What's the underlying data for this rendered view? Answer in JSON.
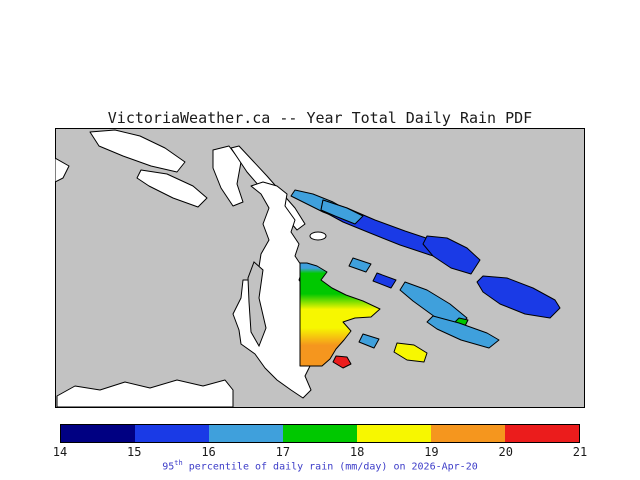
{
  "title": "VictoriaWeather.ca -- Year Total Daily Rain PDF",
  "map": {
    "sea_color": "#c2c2c2",
    "land_color": "#ffffff",
    "coast_color": "#000000"
  },
  "colorbar": {
    "min": 14,
    "max": 21,
    "ticks": [
      "14",
      "15",
      "16",
      "17",
      "18",
      "19",
      "20",
      "21"
    ],
    "segment_colors": [
      "#000082",
      "#1a3ae6",
      "#3fa0dc",
      "#00c800",
      "#f7f700",
      "#f5961e",
      "#eb1c1c"
    ]
  },
  "caption": {
    "value": "95",
    "superscript": "th",
    "rest": " percentile of daily rain (mm/day) on 2026-Apr-20",
    "color": "#3c3cc8"
  },
  "chart_data": {
    "type": "heatmap",
    "title": "VictoriaWeather.ca -- Year Total Daily Rain PDF",
    "quantity": "95th percentile of daily rain",
    "units": "mm/day",
    "date": "2026-Apr-20",
    "scale_ticks": [
      14,
      15,
      16,
      17,
      18,
      19,
      20,
      21
    ],
    "scale_colors": [
      "#000082",
      "#1a3ae6",
      "#3fa0dc",
      "#00c800",
      "#f7f700",
      "#f5961e",
      "#eb1c1c"
    ],
    "legend_position": "bottom",
    "regions": [
      {
        "area": "northeastern outer islands",
        "approx_value": "15-16 (blue)"
      },
      {
        "area": "inner gulf islands",
        "approx_value": "16-17 (light blue)"
      },
      {
        "area": "central peninsula north",
        "approx_value": "17-18 (green)"
      },
      {
        "area": "central peninsula middle",
        "approx_value": "18-19 (yellow)"
      },
      {
        "area": "central peninsula south",
        "approx_value": "19-20 (orange)"
      },
      {
        "area": "small southern islet",
        "approx_value": "20-21 (red)"
      },
      {
        "area": "small southeastern island",
        "approx_value": "18-19 (yellow)"
      }
    ]
  }
}
